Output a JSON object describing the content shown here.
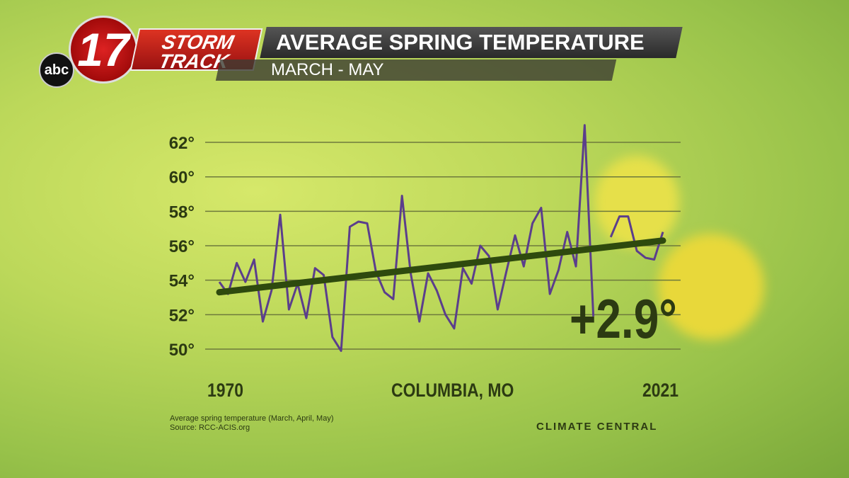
{
  "header": {
    "network": "abc",
    "channel": "17",
    "brand_line1": "STORM",
    "brand_line2": "TRACK",
    "title": "AVERAGE SPRING TEMPERATURE",
    "subtitle": "MARCH - MAY"
  },
  "chart_data": {
    "type": "line",
    "title": "Average Spring Temperature",
    "subtitle": "March - May",
    "location": "COLUMBIA, MO",
    "x_start_label": "1970",
    "x_end_label": "2021",
    "xlim": [
      1970,
      2021
    ],
    "ylim": [
      49,
      63.5
    ],
    "yticks": [
      50,
      52,
      54,
      56,
      58,
      60,
      62
    ],
    "ytick_labels": [
      "50°",
      "52°",
      "54°",
      "56°",
      "58°",
      "60°",
      "62°"
    ],
    "grid": true,
    "series": [
      {
        "name": "Average spring temperature",
        "color": "#5b3e8c",
        "x": [
          1970,
          1971,
          1972,
          1973,
          1974,
          1975,
          1976,
          1977,
          1978,
          1979,
          1980,
          1981,
          1982,
          1983,
          1984,
          1985,
          1986,
          1987,
          1988,
          1989,
          1990,
          1991,
          1992,
          1993,
          1994,
          1995,
          1996,
          1997,
          1998,
          1999,
          2000,
          2001,
          2002,
          2003,
          2004,
          2005,
          2006,
          2007,
          2008,
          2009,
          2010,
          2011,
          2012,
          2013,
          2014,
          2015,
          2016,
          2017,
          2018,
          2019,
          2020,
          2021
        ],
        "values": [
          53.9,
          53.2,
          55.0,
          53.9,
          55.2,
          51.6,
          53.4,
          57.8,
          52.3,
          53.8,
          51.8,
          54.7,
          54.3,
          50.7,
          49.9,
          57.1,
          57.4,
          57.3,
          54.5,
          53.3,
          52.9,
          58.9,
          54.4,
          51.6,
          54.4,
          53.4,
          52.0,
          51.2,
          54.7,
          53.8,
          56.0,
          55.4,
          52.3,
          54.5,
          56.6,
          54.8,
          57.3,
          58.2,
          53.2,
          54.6,
          56.8,
          54.8,
          63.0,
          51.9,
          null,
          56.5,
          57.7,
          57.7,
          55.7,
          55.3,
          55.2,
          56.8
        ]
      },
      {
        "name": "Trend",
        "color": "#2e4a0e",
        "x": [
          1970,
          2021
        ],
        "values": [
          53.3,
          56.3
        ]
      }
    ],
    "annotation": "+2.9°"
  },
  "footer": {
    "note": "Average spring temperature (March, April, May)",
    "source": "Source: RCC-ACIS.org",
    "credit": "CLIMATE  CENTRAL"
  }
}
